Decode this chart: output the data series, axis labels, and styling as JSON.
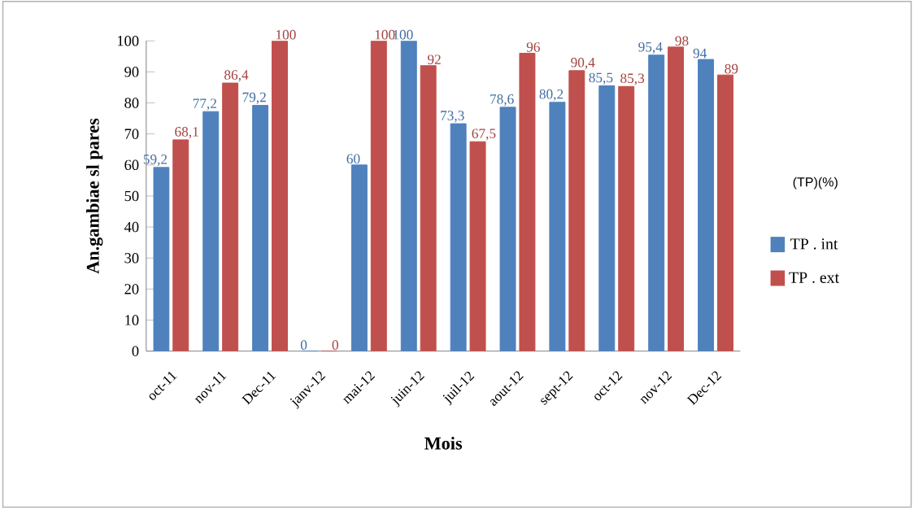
{
  "chart_data": {
    "type": "bar",
    "xlabel": "Mois",
    "ylabel": "An.gambiae sl pares",
    "legend_title": "(TP)(%)",
    "categories": [
      "oct-11",
      "nov-11",
      "Dec-11",
      "janv-12",
      "mai-12",
      "juin-12",
      "juil-12",
      "aout-12",
      "sept-12",
      "oct-12",
      "nov-12",
      "Dec-12"
    ],
    "series": [
      {
        "name": "TP . int",
        "color": "#4f81bd",
        "values": [
          59.2,
          77.2,
          79.2,
          0,
          60,
          100,
          73.3,
          78.6,
          80.2,
          85.5,
          95.4,
          94
        ],
        "value_labels": [
          "59,2",
          "77,2",
          "79,2",
          "0",
          "60",
          "100",
          "73,3",
          "78,6",
          "80,2",
          "85,5",
          "95,4",
          "94"
        ]
      },
      {
        "name": "TP . ext",
        "color": "#c0504d",
        "values": [
          68.1,
          86.4,
          100,
          0,
          100,
          92,
          67.5,
          96,
          90.4,
          85.3,
          98,
          89
        ],
        "value_labels": [
          "68,1",
          "86,4",
          "100",
          "0",
          "100",
          "92",
          "67,5",
          "96",
          "90,4",
          "85,3",
          "98",
          "89"
        ]
      }
    ],
    "ylim": [
      0,
      100
    ],
    "yticks": [
      0,
      10,
      20,
      30,
      40,
      50,
      60,
      70,
      80,
      90,
      100
    ],
    "grid": false,
    "legend": "right"
  }
}
